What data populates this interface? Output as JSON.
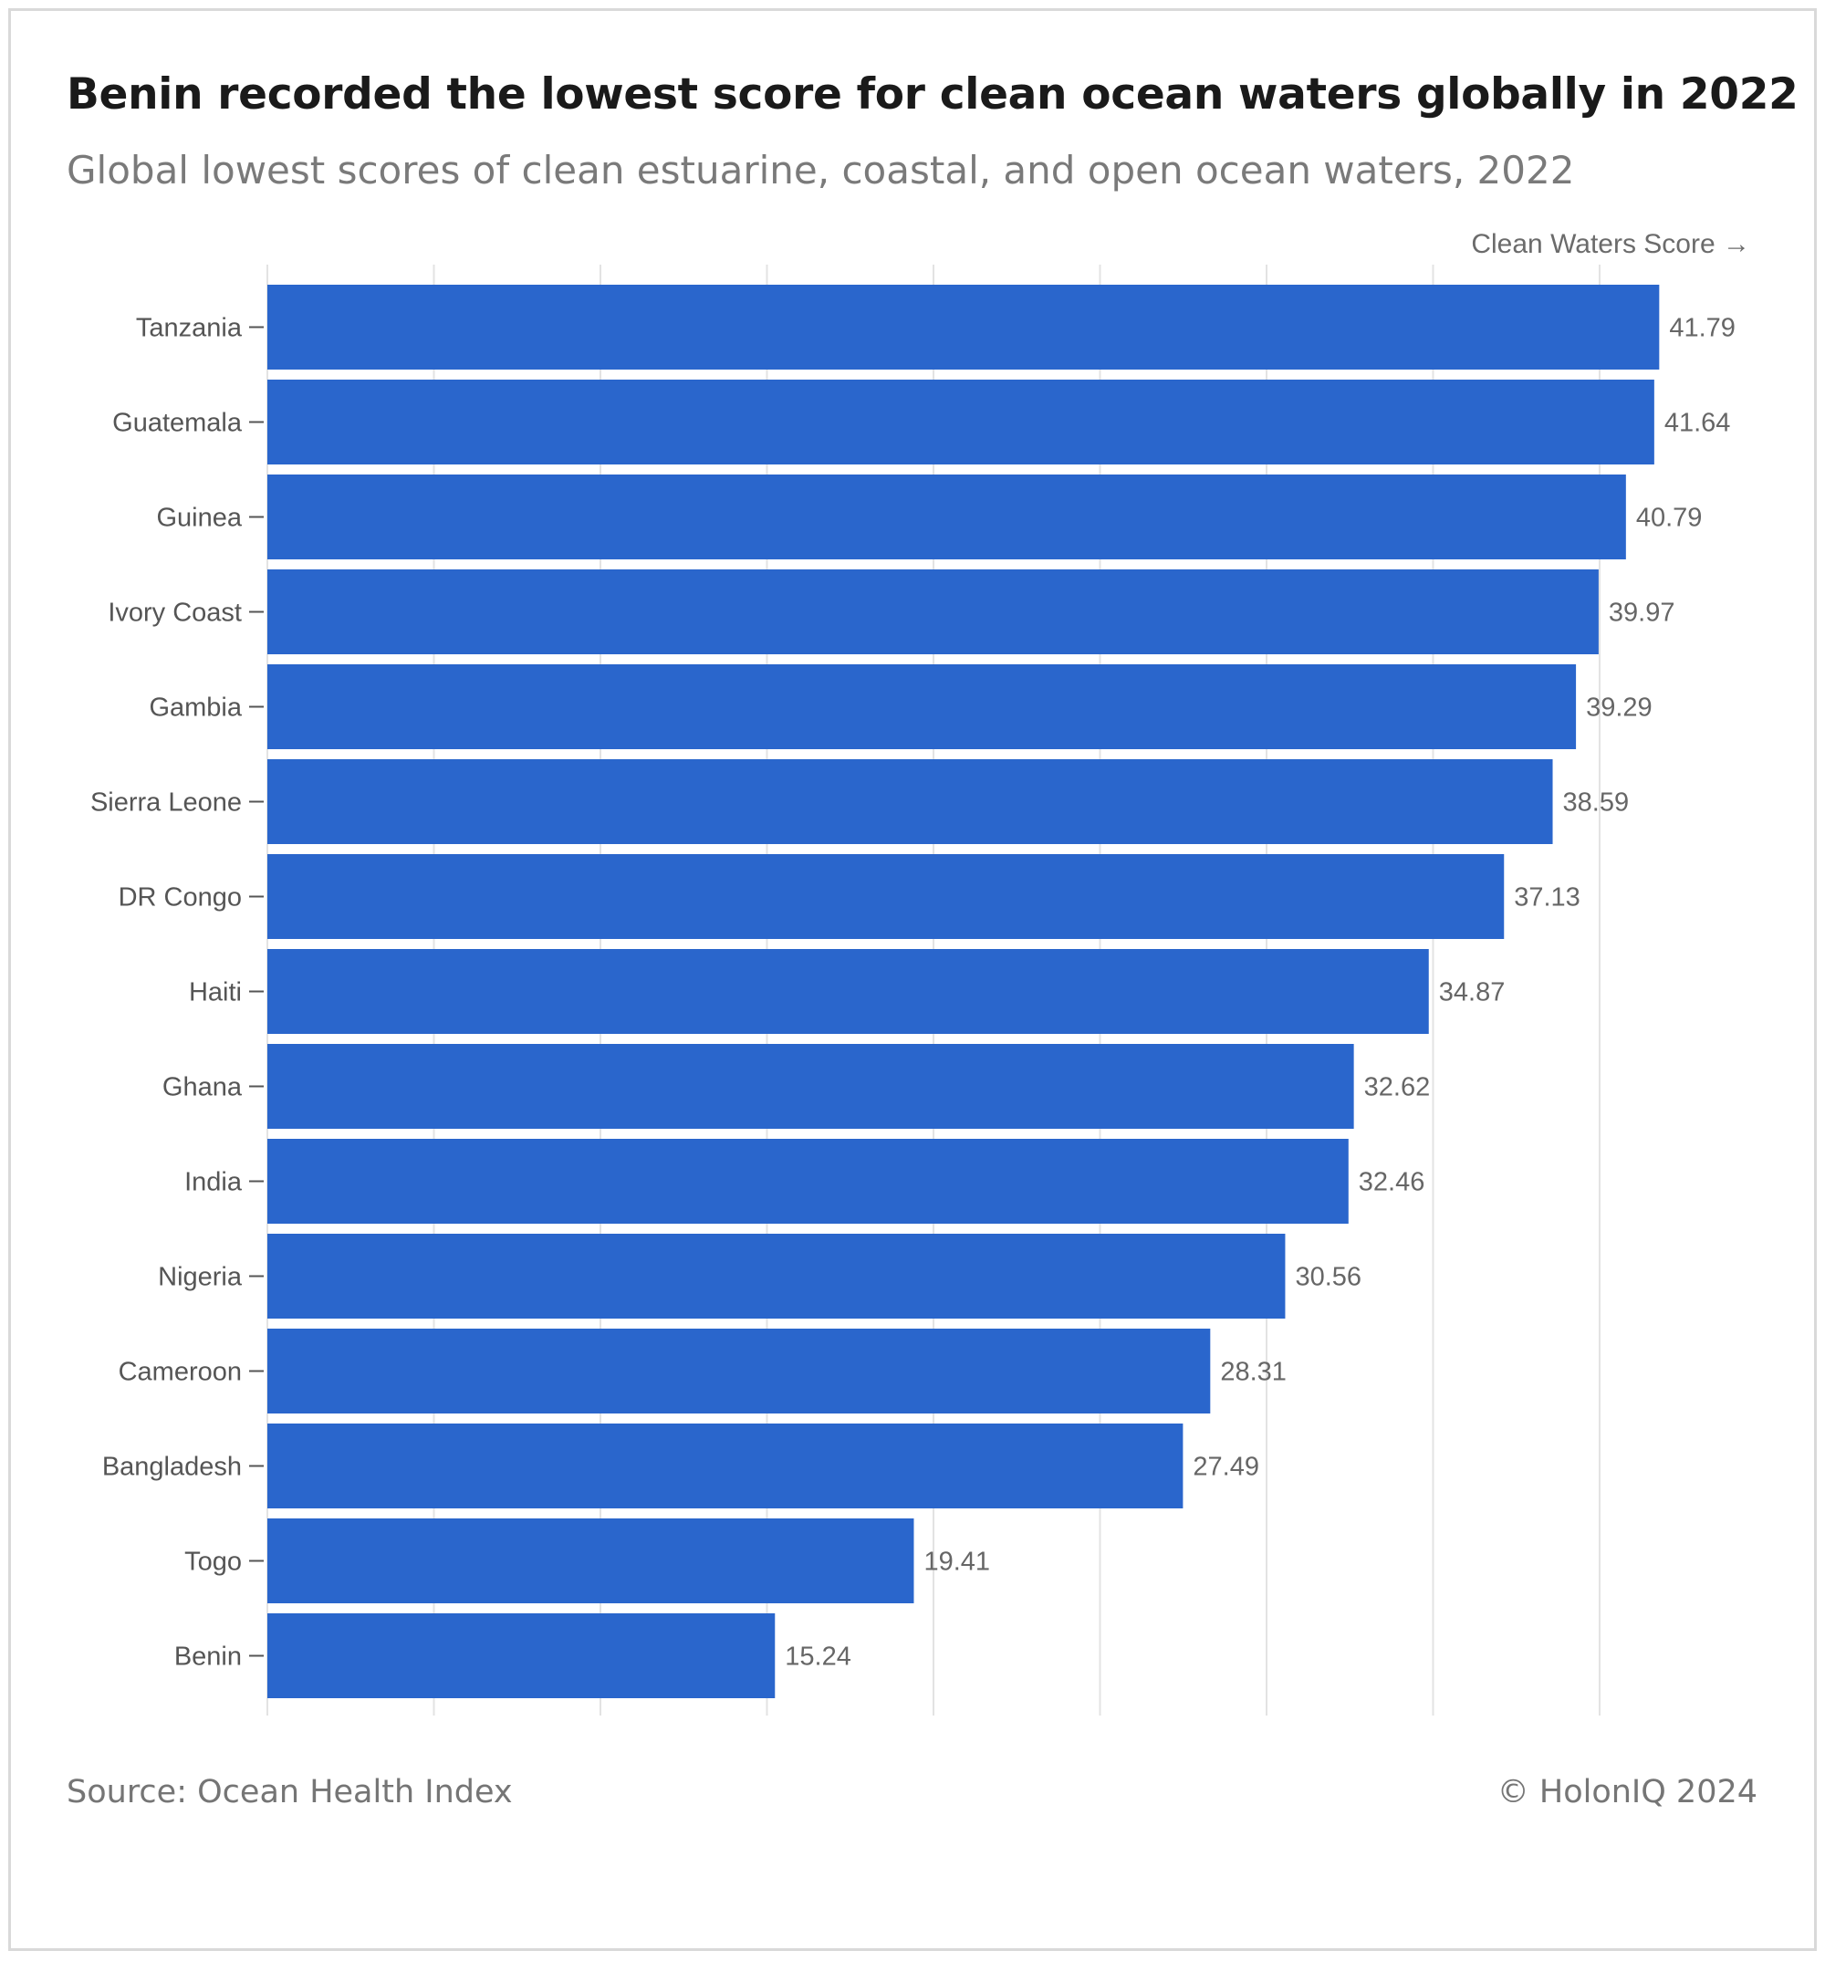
{
  "title": "Benin recorded the lowest score for clean ocean waters globally in 2022",
  "subtitle": "Global lowest scores of clean estuarine, coastal, and open ocean waters, 2022",
  "source": "Source: Ocean Health Index",
  "copyright": "© HolonIQ 2024",
  "colors": {
    "bar": "#2a66cc",
    "grid": "#e3e3e3"
  },
  "chart_data": {
    "type": "bar",
    "orientation": "horizontal",
    "title": "Benin recorded the lowest score for clean ocean waters globally in 2022",
    "xlabel": "Clean Waters Score →",
    "ylabel": "",
    "xlim": [
      0,
      44
    ],
    "grid": true,
    "categories": [
      "Tanzania",
      "Guatemala",
      "Guinea",
      "Ivory Coast",
      "Gambia",
      "Sierra Leone",
      "DR Congo",
      "Haiti",
      "Ghana",
      "India",
      "Nigeria",
      "Cameroon",
      "Bangladesh",
      "Togo",
      "Benin"
    ],
    "values": [
      41.79,
      41.64,
      40.79,
      39.97,
      39.29,
      38.59,
      37.13,
      34.87,
      32.62,
      32.46,
      30.56,
      28.31,
      27.49,
      19.41,
      15.24
    ]
  }
}
